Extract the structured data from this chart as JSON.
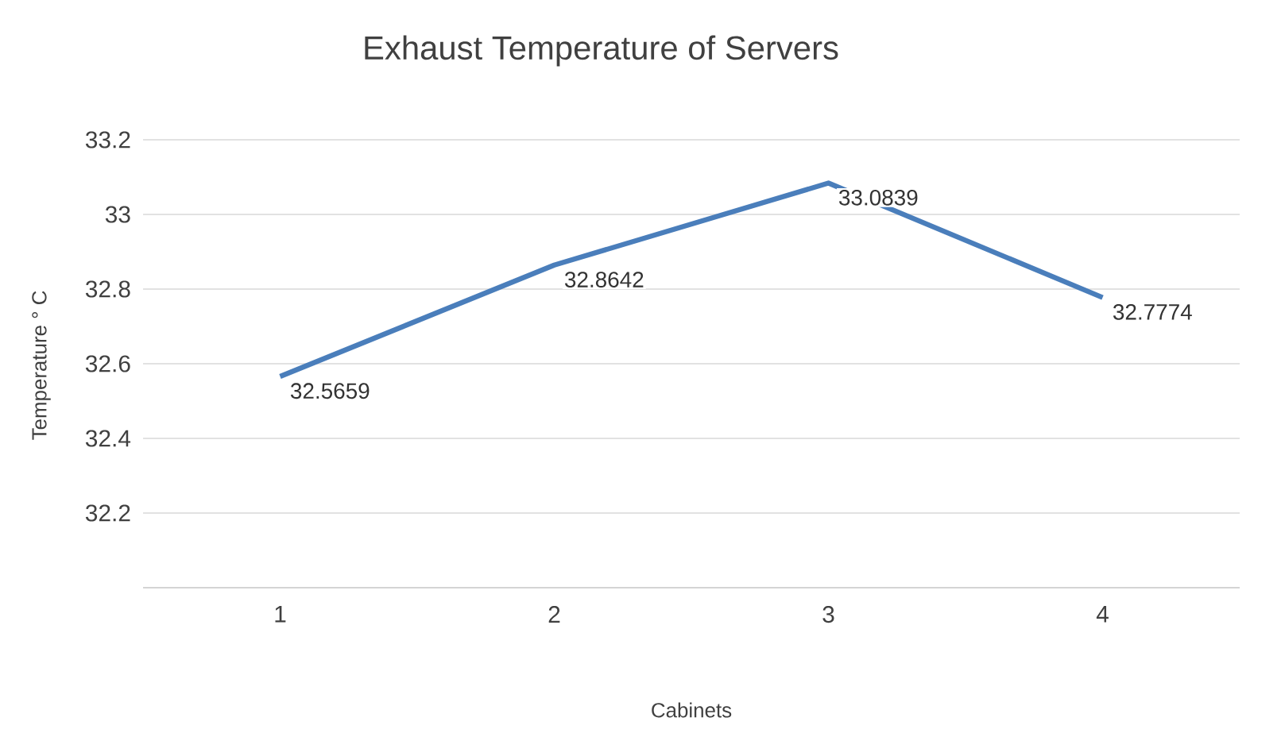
{
  "chart_data": {
    "type": "line",
    "title": "Exhaust Temperature of Servers",
    "xlabel": "Cabinets",
    "ylabel": "Temperature ° C",
    "categories": [
      "1",
      "2",
      "3",
      "4"
    ],
    "series": [
      {
        "color": "#4a7ebb",
        "values": [
          32.5659,
          32.8642,
          33.0839,
          32.7774
        ]
      }
    ],
    "ylim": [
      32,
      33.2
    ],
    "yticks": [
      32.2,
      32.4,
      32.6,
      32.8,
      33,
      33.2
    ],
    "grid": "y",
    "data_labels": true
  }
}
